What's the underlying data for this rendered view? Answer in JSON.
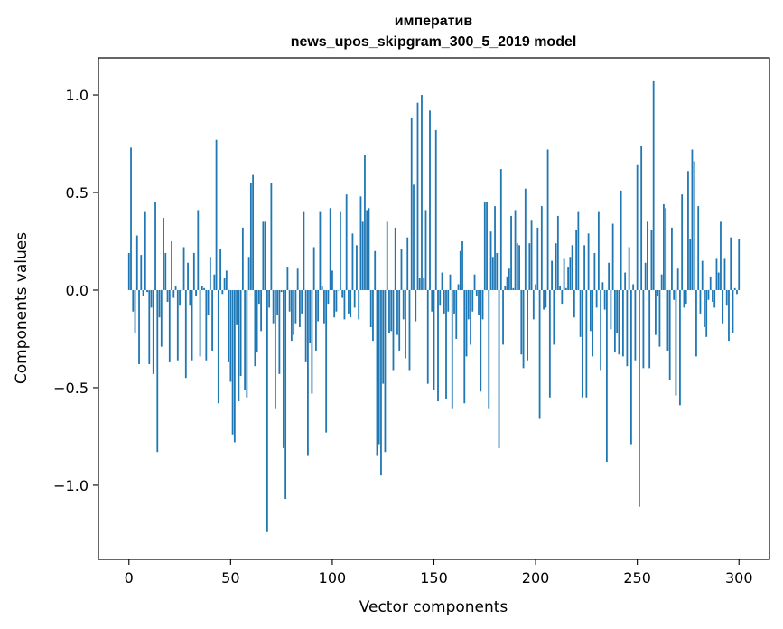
{
  "chart_data": {
    "type": "bar",
    "title": "императив",
    "subtitle": "news_upos_skipgram_300_5_2019 model",
    "xlabel": "Vector components",
    "ylabel": "Components values",
    "xlim": [
      -15,
      315
    ],
    "ylim": [
      -1.38,
      1.19
    ],
    "xticks": [
      0,
      50,
      100,
      150,
      200,
      250,
      300
    ],
    "xtick_labels": [
      "0",
      "50",
      "100",
      "150",
      "200",
      "250",
      "300"
    ],
    "yticks": [
      -1.0,
      -0.5,
      0.0,
      0.5,
      1.0
    ],
    "ytick_labels": [
      "−1.0",
      "−0.5",
      "0.0",
      "0.5",
      "1.0"
    ],
    "grid": false,
    "bar_color": "#1f77b4",
    "values": [
      0.19,
      0.73,
      -0.11,
      -0.22,
      0.28,
      -0.38,
      0.18,
      -0.03,
      0.4,
      -0.01,
      -0.38,
      -0.09,
      -0.43,
      0.45,
      -0.83,
      -0.14,
      -0.29,
      0.37,
      0.19,
      -0.06,
      -0.37,
      0.25,
      -0.04,
      0.02,
      -0.36,
      -0.08,
      0.0,
      0.22,
      -0.45,
      0.14,
      -0.08,
      -0.36,
      0.19,
      -0.03,
      0.41,
      -0.34,
      0.02,
      0.01,
      -0.36,
      -0.13,
      0.17,
      -0.31,
      0.08,
      0.77,
      -0.58,
      0.21,
      -0.02,
      0.06,
      0.1,
      -0.37,
      -0.47,
      -0.74,
      -0.78,
      -0.18,
      -0.57,
      -0.44,
      0.32,
      -0.51,
      -0.55,
      0.17,
      0.55,
      0.59,
      -0.39,
      -0.32,
      -0.07,
      -0.21,
      0.35,
      0.35,
      -1.24,
      -0.09,
      0.55,
      -0.17,
      -0.61,
      -0.13,
      -0.43,
      -0.01,
      -0.81,
      -1.07,
      0.12,
      -0.11,
      -0.26,
      -0.23,
      -0.17,
      0.11,
      -0.19,
      -0.12,
      0.4,
      -0.37,
      -0.85,
      -0.27,
      -0.53,
      0.22,
      -0.31,
      -0.16,
      0.4,
      0.02,
      -0.17,
      -0.73,
      -0.07,
      0.42,
      0.1,
      -0.14,
      -0.11,
      0.0,
      0.4,
      -0.04,
      -0.15,
      0.49,
      -0.12,
      -0.14,
      0.29,
      -0.09,
      0.23,
      -0.15,
      0.48,
      0.35,
      0.69,
      0.41,
      0.42,
      -0.19,
      -0.26,
      0.2,
      -0.85,
      -0.79,
      -0.95,
      -0.48,
      -0.83,
      0.35,
      -0.22,
      -0.21,
      -0.41,
      0.32,
      -0.23,
      -0.31,
      0.21,
      -0.15,
      -0.35,
      0.27,
      -0.41,
      0.88,
      0.54,
      -0.16,
      0.96,
      0.06,
      1.0,
      0.06,
      0.41,
      -0.48,
      0.92,
      -0.11,
      -0.51,
      0.82,
      -0.57,
      -0.08,
      0.09,
      -0.12,
      -0.56,
      -0.11,
      0.08,
      -0.61,
      -0.12,
      -0.25,
      0.03,
      0.2,
      0.25,
      -0.58,
      -0.34,
      -0.15,
      -0.28,
      -0.11,
      0.08,
      -0.03,
      -0.13,
      -0.52,
      -0.15,
      0.45,
      0.45,
      -0.61,
      0.3,
      0.17,
      0.43,
      0.19,
      -0.81,
      0.62,
      -0.28,
      0.02,
      0.07,
      0.11,
      0.38,
      0.01,
      0.41,
      0.24,
      0.23,
      -0.33,
      -0.4,
      0.52,
      -0.36,
      0.24,
      0.36,
      -0.15,
      0.03,
      0.32,
      -0.66,
      0.43,
      -0.1,
      -0.09,
      0.72,
      -0.55,
      0.15,
      -0.28,
      0.24,
      0.38,
      0.02,
      -0.07,
      0.16,
      0.01,
      0.12,
      0.17,
      0.23,
      -0.14,
      0.31,
      0.4,
      -0.24,
      -0.55,
      0.23,
      -0.55,
      0.29,
      -0.21,
      -0.34,
      0.19,
      -0.09,
      0.4,
      -0.41,
      0.04,
      -0.1,
      -0.88,
      0.14,
      -0.2,
      0.34,
      -0.32,
      -0.22,
      -0.33,
      0.51,
      -0.34,
      0.09,
      -0.39,
      0.22,
      -0.79,
      0.03,
      -0.36,
      0.64,
      -1.11,
      0.74,
      -0.4,
      0.14,
      0.35,
      -0.4,
      0.31,
      1.07,
      -0.23,
      -0.03,
      -0.29,
      0.08,
      0.44,
      0.42,
      -0.31,
      -0.46,
      0.32,
      -0.05,
      -0.54,
      0.11,
      -0.59,
      0.49,
      -0.09,
      -0.07,
      0.61,
      0.26,
      0.72,
      0.66,
      -0.34,
      0.43,
      -0.12,
      0.15,
      -0.19,
      -0.24,
      -0.05,
      0.07,
      -0.06,
      -0.09,
      0.16,
      0.09,
      0.35,
      -0.17,
      0.16,
      -0.08,
      -0.26,
      0.27,
      -0.22,
      0.01,
      -0.02,
      0.26
    ]
  }
}
